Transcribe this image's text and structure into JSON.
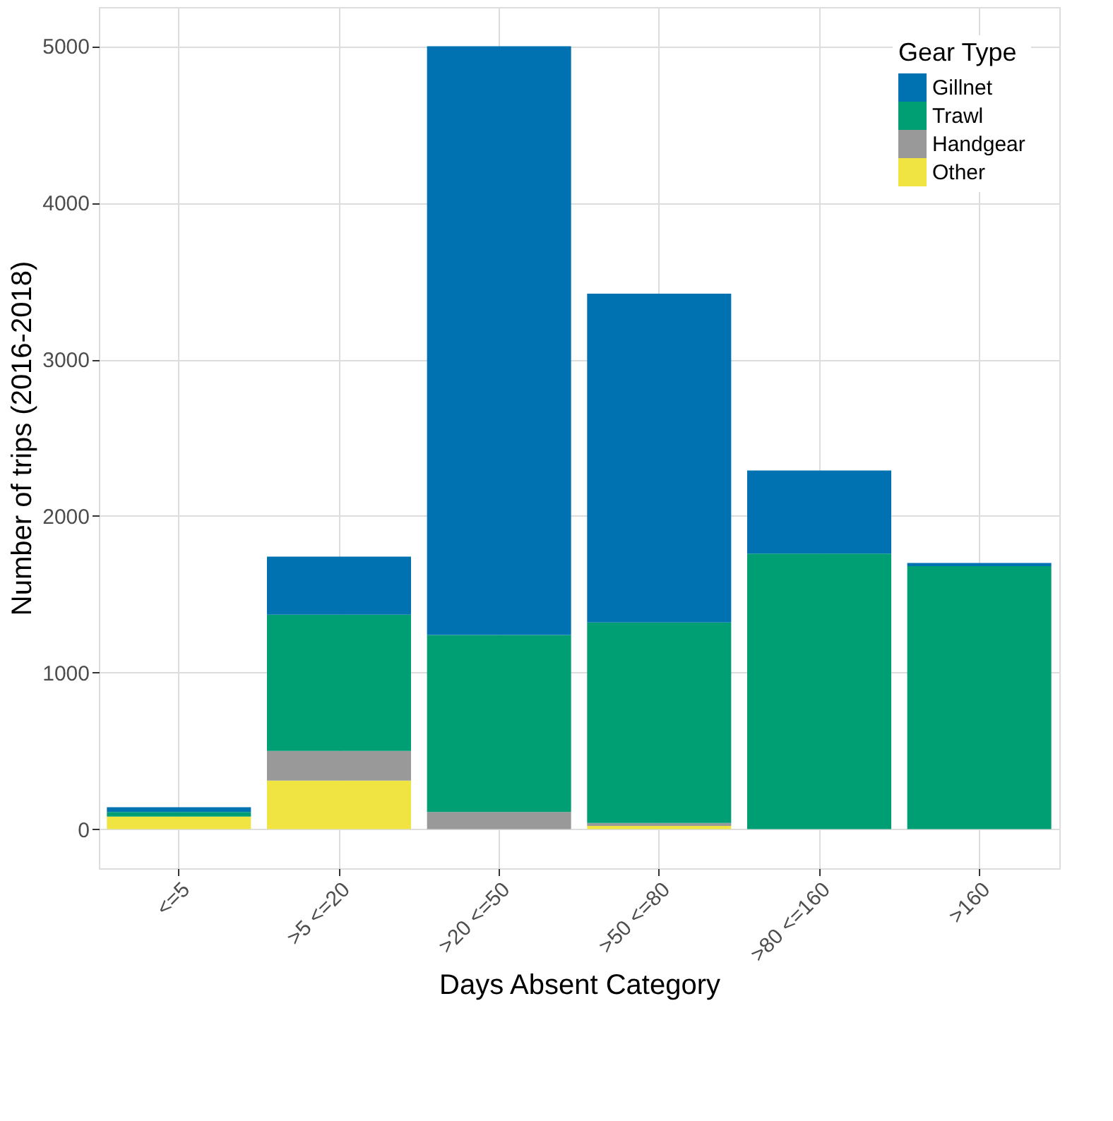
{
  "chart_data": {
    "type": "bar",
    "stacked": true,
    "xlabel": "Days Absent Category",
    "ylabel": "Number of trips (2016-2018)",
    "legend_title": "Gear Type",
    "categories": [
      "<=5",
      ">5 <=20",
      ">20 <=50",
      ">50 <=80",
      ">80 <=160",
      ">160"
    ],
    "series": [
      {
        "name": "Other",
        "color": "#f0e442",
        "values": [
          80,
          310,
          0,
          20,
          0,
          0
        ]
      },
      {
        "name": "Handgear",
        "color": "#999999",
        "values": [
          0,
          190,
          110,
          20,
          0,
          0
        ]
      },
      {
        "name": "Trawl",
        "color": "#009e73",
        "values": [
          30,
          870,
          1130,
          1280,
          1760,
          1680
        ]
      },
      {
        "name": "Gillnet",
        "color": "#0072b2",
        "values": [
          30,
          370,
          3760,
          2100,
          530,
          20
        ]
      }
    ],
    "ylim": [
      -250,
      5250
    ],
    "yticks": [
      0,
      1000,
      2000,
      3000,
      4000,
      5000
    ],
    "grid": true,
    "legend": "top right"
  }
}
